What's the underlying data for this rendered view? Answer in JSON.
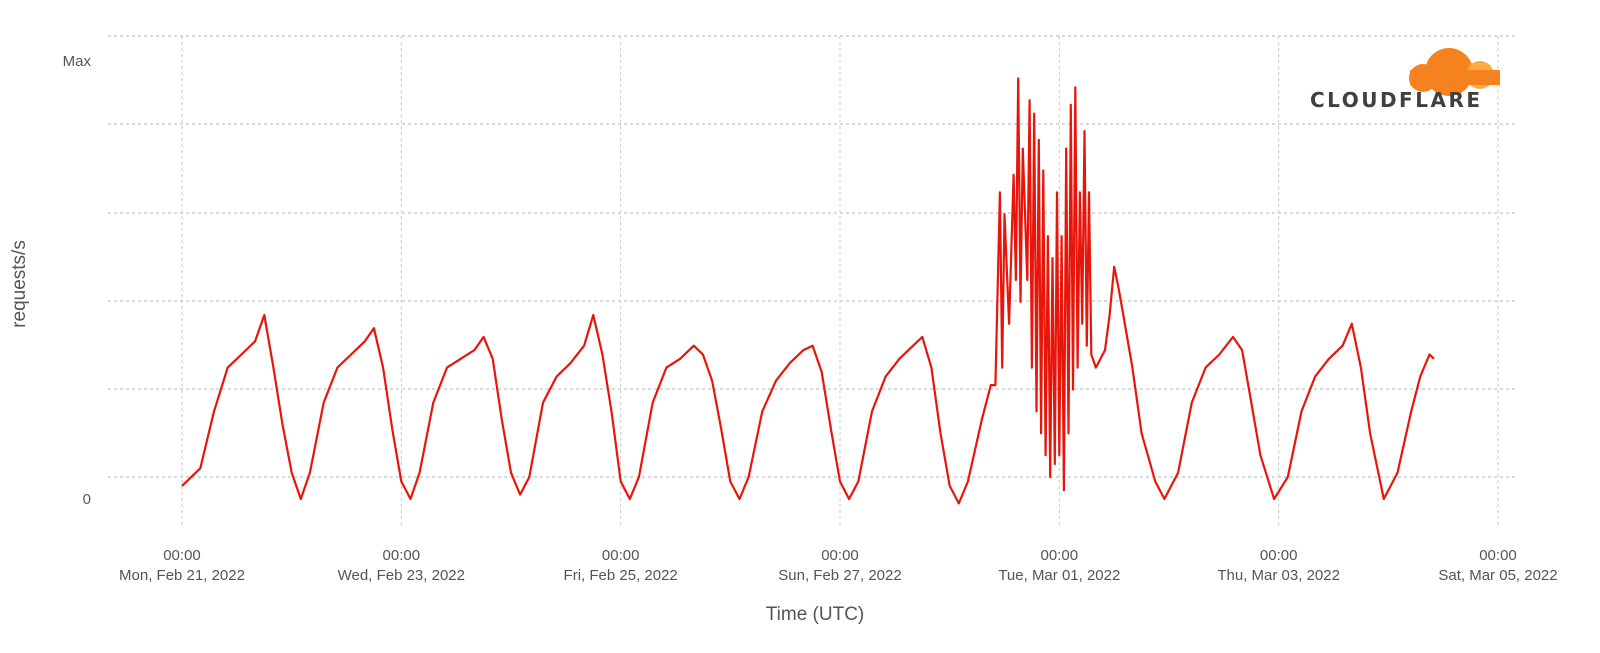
{
  "chart_data": {
    "type": "line",
    "title": "",
    "ylabel": "requests/s",
    "xlabel": "Time (UTC)",
    "y_tick_labels": [
      "0",
      "Max"
    ],
    "ylim": [
      0,
      1
    ],
    "xlim": [
      "2022-02-21T00:00",
      "2022-03-05T00:00"
    ],
    "x_ticks": [
      {
        "time": "00:00",
        "date": "Mon, Feb 21, 2022",
        "value": "2022-02-21T00:00"
      },
      {
        "time": "00:00",
        "date": "Wed, Feb 23, 2022",
        "value": "2022-02-23T00:00"
      },
      {
        "time": "00:00",
        "date": "Fri, Feb 25, 2022",
        "value": "2022-02-25T00:00"
      },
      {
        "time": "00:00",
        "date": "Sun, Feb 27, 2022",
        "value": "2022-02-27T00:00"
      },
      {
        "time": "00:00",
        "date": "Tue, Mar 01, 2022",
        "value": "2022-03-01T00:00"
      },
      {
        "time": "00:00",
        "date": "Thu, Mar 03, 2022",
        "value": "2022-03-03T00:00"
      },
      {
        "time": "00:00",
        "date": "Sat, Mar 05, 2022",
        "value": "2022-03-05T00:00"
      }
    ],
    "grid": true,
    "series": [
      {
        "color": "#e8150b",
        "points": [
          [
            "2022-02-21T00:00",
            0.03
          ],
          [
            "2022-02-21T04:00",
            0.07
          ],
          [
            "2022-02-21T07:00",
            0.2
          ],
          [
            "2022-02-21T10:00",
            0.3
          ],
          [
            "2022-02-21T13:00",
            0.33
          ],
          [
            "2022-02-21T16:00",
            0.36
          ],
          [
            "2022-02-21T18:00",
            0.42
          ],
          [
            "2022-02-21T20:00",
            0.3
          ],
          [
            "2022-02-21T22:00",
            0.17
          ],
          [
            "2022-02-22T00:00",
            0.06
          ],
          [
            "2022-02-22T02:00",
            0.0
          ],
          [
            "2022-02-22T04:00",
            0.06
          ],
          [
            "2022-02-22T07:00",
            0.22
          ],
          [
            "2022-02-22T10:00",
            0.3
          ],
          [
            "2022-02-22T13:00",
            0.33
          ],
          [
            "2022-02-22T16:00",
            0.36
          ],
          [
            "2022-02-22T18:00",
            0.39
          ],
          [
            "2022-02-22T20:00",
            0.3
          ],
          [
            "2022-02-22T22:00",
            0.16
          ],
          [
            "2022-02-23T00:00",
            0.04
          ],
          [
            "2022-02-23T02:00",
            0.0
          ],
          [
            "2022-02-23T04:00",
            0.06
          ],
          [
            "2022-02-23T07:00",
            0.22
          ],
          [
            "2022-02-23T10:00",
            0.3
          ],
          [
            "2022-02-23T13:00",
            0.32
          ],
          [
            "2022-02-23T16:00",
            0.34
          ],
          [
            "2022-02-23T18:00",
            0.37
          ],
          [
            "2022-02-23T20:00",
            0.32
          ],
          [
            "2022-02-23T22:00",
            0.18
          ],
          [
            "2022-02-24T00:00",
            0.06
          ],
          [
            "2022-02-24T02:00",
            0.01
          ],
          [
            "2022-02-24T04:00",
            0.05
          ],
          [
            "2022-02-24T07:00",
            0.22
          ],
          [
            "2022-02-24T10:00",
            0.28
          ],
          [
            "2022-02-24T13:00",
            0.31
          ],
          [
            "2022-02-24T16:00",
            0.35
          ],
          [
            "2022-02-24T18:00",
            0.42
          ],
          [
            "2022-02-24T20:00",
            0.33
          ],
          [
            "2022-02-24T22:00",
            0.2
          ],
          [
            "2022-02-25T00:00",
            0.04
          ],
          [
            "2022-02-25T02:00",
            0.0
          ],
          [
            "2022-02-25T04:00",
            0.05
          ],
          [
            "2022-02-25T07:00",
            0.22
          ],
          [
            "2022-02-25T10:00",
            0.3
          ],
          [
            "2022-02-25T13:00",
            0.32
          ],
          [
            "2022-02-25T16:00",
            0.35
          ],
          [
            "2022-02-25T18:00",
            0.33
          ],
          [
            "2022-02-25T20:00",
            0.27
          ],
          [
            "2022-02-25T22:00",
            0.16
          ],
          [
            "2022-02-26T00:00",
            0.04
          ],
          [
            "2022-02-26T02:00",
            0.0
          ],
          [
            "2022-02-26T04:00",
            0.05
          ],
          [
            "2022-02-26T07:00",
            0.2
          ],
          [
            "2022-02-26T10:00",
            0.27
          ],
          [
            "2022-02-26T13:00",
            0.31
          ],
          [
            "2022-02-26T16:00",
            0.34
          ],
          [
            "2022-02-26T18:00",
            0.35
          ],
          [
            "2022-02-26T20:00",
            0.29
          ],
          [
            "2022-02-26T22:00",
            0.16
          ],
          [
            "2022-02-27T00:00",
            0.04
          ],
          [
            "2022-02-27T02:00",
            0.0
          ],
          [
            "2022-02-27T04:00",
            0.04
          ],
          [
            "2022-02-27T07:00",
            0.2
          ],
          [
            "2022-02-27T10:00",
            0.28
          ],
          [
            "2022-02-27T13:00",
            0.32
          ],
          [
            "2022-02-27T16:00",
            0.35
          ],
          [
            "2022-02-27T18:00",
            0.37
          ],
          [
            "2022-02-27T20:00",
            0.3
          ],
          [
            "2022-02-27T22:00",
            0.15
          ],
          [
            "2022-02-28T00:00",
            0.03
          ],
          [
            "2022-02-28T02:00",
            -0.01
          ],
          [
            "2022-02-28T04:00",
            0.04
          ],
          [
            "2022-02-28T07:00",
            0.18
          ],
          [
            "2022-02-28T09:00",
            0.26
          ],
          [
            "2022-02-28T10:00",
            0.26
          ],
          [
            "2022-02-28T11:00",
            0.7
          ],
          [
            "2022-02-28T11:30",
            0.3
          ],
          [
            "2022-02-28T12:00",
            0.65
          ],
          [
            "2022-02-28T13:00",
            0.4
          ],
          [
            "2022-02-28T14:00",
            0.74
          ],
          [
            "2022-02-28T14:30",
            0.5
          ],
          [
            "2022-02-28T15:00",
            0.96
          ],
          [
            "2022-02-28T15:30",
            0.45
          ],
          [
            "2022-02-28T16:00",
            0.8
          ],
          [
            "2022-02-28T17:00",
            0.5
          ],
          [
            "2022-02-28T17:30",
            0.91
          ],
          [
            "2022-02-28T18:00",
            0.3
          ],
          [
            "2022-02-28T18:30",
            0.88
          ],
          [
            "2022-02-28T19:00",
            0.2
          ],
          [
            "2022-02-28T19:30",
            0.82
          ],
          [
            "2022-02-28T20:00",
            0.15
          ],
          [
            "2022-02-28T20:30",
            0.75
          ],
          [
            "2022-02-28T21:00",
            0.1
          ],
          [
            "2022-02-28T21:30",
            0.6
          ],
          [
            "2022-02-28T22:00",
            0.05
          ],
          [
            "2022-02-28T22:30",
            0.55
          ],
          [
            "2022-02-28T23:00",
            0.08
          ],
          [
            "2022-02-28T23:30",
            0.7
          ],
          [
            "2022-03-01T00:00",
            0.1
          ],
          [
            "2022-03-01T00:30",
            0.6
          ],
          [
            "2022-03-01T01:00",
            0.02
          ],
          [
            "2022-03-01T01:30",
            0.8
          ],
          [
            "2022-03-01T02:00",
            0.15
          ],
          [
            "2022-03-01T02:30",
            0.9
          ],
          [
            "2022-03-01T03:00",
            0.25
          ],
          [
            "2022-03-01T03:30",
            0.94
          ],
          [
            "2022-03-01T04:00",
            0.3
          ],
          [
            "2022-03-01T04:30",
            0.7
          ],
          [
            "2022-03-01T05:00",
            0.4
          ],
          [
            "2022-03-01T05:30",
            0.84
          ],
          [
            "2022-03-01T06:00",
            0.35
          ],
          [
            "2022-03-01T06:30",
            0.7
          ],
          [
            "2022-03-01T07:00",
            0.33
          ],
          [
            "2022-03-01T08:00",
            0.3
          ],
          [
            "2022-03-01T09:00",
            0.32
          ],
          [
            "2022-03-01T10:00",
            0.34
          ],
          [
            "2022-03-01T11:00",
            0.42
          ],
          [
            "2022-03-01T12:00",
            0.53
          ],
          [
            "2022-03-01T13:00",
            0.48
          ],
          [
            "2022-03-01T14:00",
            0.42
          ],
          [
            "2022-03-01T16:00",
            0.3
          ],
          [
            "2022-03-01T18:00",
            0.15
          ],
          [
            "2022-03-01T21:00",
            0.04
          ],
          [
            "2022-03-01T23:00",
            0.0
          ],
          [
            "2022-03-02T02:00",
            0.06
          ],
          [
            "2022-03-02T05:00",
            0.22
          ],
          [
            "2022-03-02T08:00",
            0.3
          ],
          [
            "2022-03-02T11:00",
            0.33
          ],
          [
            "2022-03-02T14:00",
            0.37
          ],
          [
            "2022-03-02T16:00",
            0.34
          ],
          [
            "2022-03-02T18:00",
            0.22
          ],
          [
            "2022-03-02T20:00",
            0.1
          ],
          [
            "2022-03-02T23:00",
            0.0
          ],
          [
            "2022-03-03T02:00",
            0.05
          ],
          [
            "2022-03-03T05:00",
            0.2
          ],
          [
            "2022-03-03T08:00",
            0.28
          ],
          [
            "2022-03-03T11:00",
            0.32
          ],
          [
            "2022-03-03T14:00",
            0.35
          ],
          [
            "2022-03-03T16:00",
            0.4
          ],
          [
            "2022-03-03T18:00",
            0.3
          ],
          [
            "2022-03-03T20:00",
            0.15
          ],
          [
            "2022-03-03T23:00",
            0.0
          ],
          [
            "2022-03-04T02:00",
            0.06
          ],
          [
            "2022-03-04T05:00",
            0.2
          ],
          [
            "2022-03-04T07:00",
            0.28
          ],
          [
            "2022-03-04T09:00",
            0.33
          ],
          [
            "2022-03-04T10:00",
            0.32
          ]
        ]
      }
    ]
  },
  "logo": {
    "text": "CLOUDFLARE",
    "colors": [
      "#f6821f",
      "#fbad41"
    ]
  }
}
